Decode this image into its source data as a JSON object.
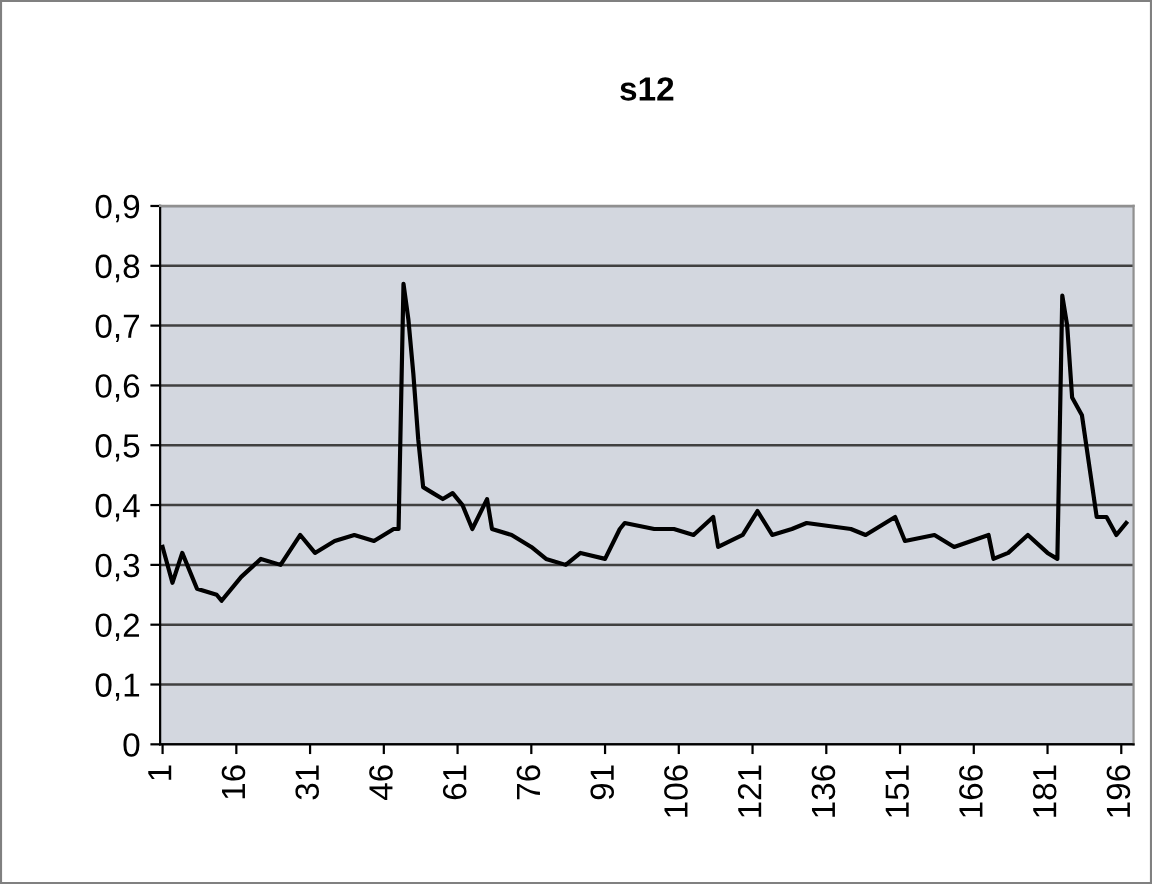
{
  "chart_data": {
    "type": "line",
    "title": "s12",
    "x": [
      1,
      3,
      5,
      8,
      12,
      13,
      17,
      21,
      25,
      29,
      32,
      36,
      40,
      44,
      48,
      49,
      50,
      51,
      52,
      53,
      54,
      56,
      58,
      60,
      62,
      64,
      67,
      68,
      72,
      76,
      79,
      83,
      86,
      91,
      94,
      95,
      101,
      105,
      109,
      113,
      114,
      119,
      122,
      125,
      129,
      132,
      141,
      144,
      150,
      152,
      158,
      162,
      169,
      170,
      173,
      177,
      181,
      183,
      184,
      185,
      186,
      188,
      191,
      193,
      195,
      197
    ],
    "series": [
      {
        "color": "#000000",
        "values": [
          0.33,
          0.27,
          0.32,
          0.26,
          0.25,
          0.24,
          0.28,
          0.31,
          0.3,
          0.35,
          0.32,
          0.34,
          0.35,
          0.34,
          0.36,
          0.36,
          0.77,
          0.71,
          0.62,
          0.51,
          0.43,
          0.42,
          0.41,
          0.42,
          0.4,
          0.36,
          0.41,
          0.36,
          0.35,
          0.33,
          0.31,
          0.3,
          0.32,
          0.31,
          0.36,
          0.37,
          0.36,
          0.36,
          0.35,
          0.38,
          0.33,
          0.35,
          0.39,
          0.35,
          0.36,
          0.37,
          0.36,
          0.35,
          0.38,
          0.34,
          0.35,
          0.33,
          0.35,
          0.31,
          0.32,
          0.35,
          0.32,
          0.31,
          0.75,
          0.7,
          0.58,
          0.55,
          0.38,
          0.38,
          0.35,
          0.37
        ]
      }
    ],
    "xlim": [
      0.5,
      198.5
    ],
    "xticks": [
      1,
      16,
      31,
      46,
      61,
      76,
      91,
      106,
      121,
      136,
      151,
      166,
      181,
      196
    ],
    "ylim": [
      0,
      0.9
    ],
    "yticks": [
      {
        "value": 0,
        "label": "0"
      },
      {
        "value": 0.1,
        "label": "0,1"
      },
      {
        "value": 0.2,
        "label": "0,2"
      },
      {
        "value": 0.3,
        "label": "0,3"
      },
      {
        "value": 0.4,
        "label": "0,4"
      },
      {
        "value": 0.5,
        "label": "0,5"
      },
      {
        "value": 0.6,
        "label": "0,6"
      },
      {
        "value": 0.7,
        "label": "0,7"
      },
      {
        "value": 0.8,
        "label": "0,8"
      },
      {
        "value": 0.9,
        "label": "0,9"
      }
    ],
    "grid": "y",
    "marker": "none",
    "line_style": "solid"
  }
}
